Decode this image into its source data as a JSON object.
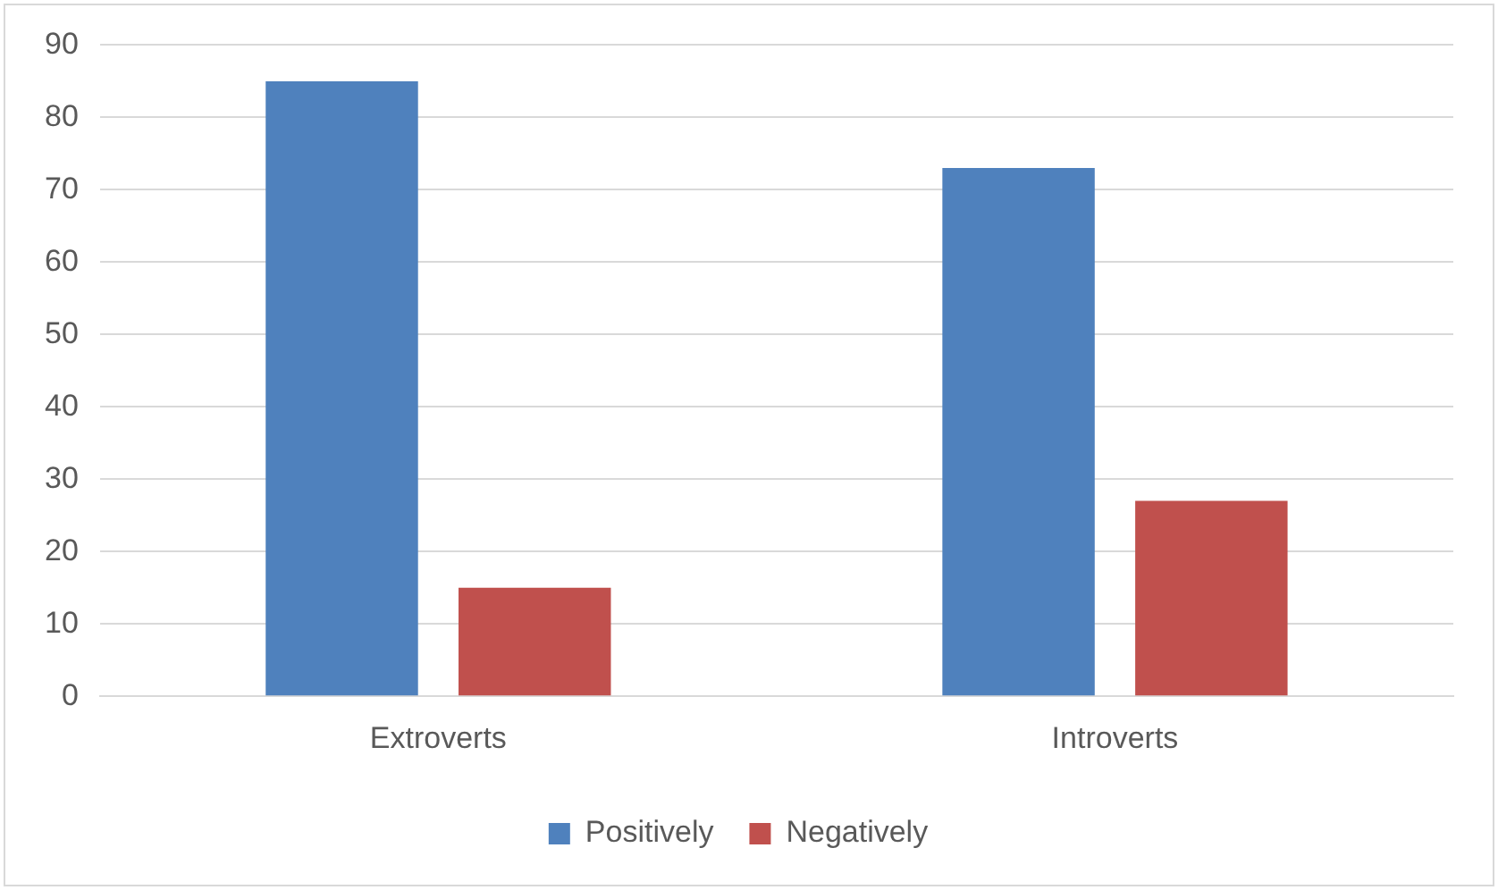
{
  "chart_data": {
    "type": "bar",
    "categories": [
      "Extroverts",
      "Introverts"
    ],
    "series": [
      {
        "name": "Positively",
        "color": "#4f81bd",
        "values": [
          85,
          73
        ]
      },
      {
        "name": "Negatively",
        "color": "#c0504d",
        "values": [
          15,
          27
        ]
      }
    ],
    "ylim": [
      0,
      90
    ],
    "yticks": [
      0,
      10,
      20,
      30,
      40,
      50,
      60,
      70,
      80,
      90
    ],
    "grid": "y",
    "legend": "bottom"
  }
}
